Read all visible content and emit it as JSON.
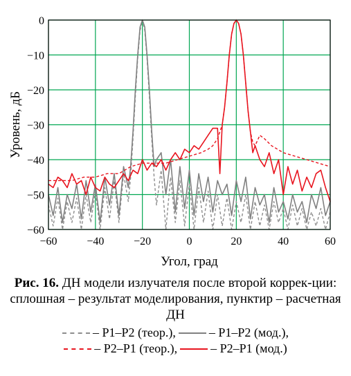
{
  "chart_data": {
    "type": "line",
    "xlabel": "Угол, град",
    "ylabel": "Уровень, дБ",
    "xlim": [
      -60,
      60
    ],
    "ylim": [
      -60,
      0
    ],
    "xticks": [
      -60,
      -40,
      -20,
      0,
      20,
      40,
      60
    ],
    "yticks": [
      0,
      -10,
      -20,
      -30,
      -40,
      -50,
      -60
    ],
    "xtick_labels": [
      "−60",
      "−40",
      "−20",
      "0",
      "20",
      "40",
      "60"
    ],
    "ytick_labels": [
      "0",
      "−10",
      "−20",
      "−30",
      "−40",
      "−50",
      "−60"
    ],
    "grid": true,
    "grid_color": "#00a651",
    "series": [
      {
        "name": "P1–P2 (теор.)",
        "color": "#8c8c8c",
        "dash": true,
        "x": [
          -60,
          -58,
          -56,
          -54,
          -52,
          -50,
          -48,
          -46,
          -44,
          -42,
          -40,
          -38,
          -36,
          -34,
          -32,
          -30,
          -28,
          -26,
          -25,
          -24,
          -23,
          -22,
          -21,
          -20,
          -19,
          -18,
          -17,
          -16,
          -15,
          -14,
          -12,
          -10,
          -8,
          -6,
          -4,
          -2,
          0,
          2,
          4,
          6,
          8,
          10,
          12,
          14,
          16,
          18,
          20,
          22,
          24,
          26,
          28,
          30,
          32,
          34,
          36,
          38,
          40,
          42,
          44,
          46,
          48,
          50,
          52,
          54,
          56,
          58,
          60
        ],
        "y": [
          -53,
          -59,
          -51,
          -60,
          -52,
          -58,
          -51,
          -60,
          -50,
          -58,
          -49,
          -60,
          -48,
          -57,
          -46,
          -58,
          -44,
          -52,
          -45,
          -34,
          -22,
          -11,
          -3,
          0,
          -3,
          -11,
          -22,
          -34,
          -45,
          -53,
          -43,
          -60,
          -45,
          -58,
          -46,
          -59,
          -47,
          -60,
          -48,
          -58,
          -49,
          -60,
          -50,
          -59,
          -51,
          -60,
          -52,
          -58,
          -50,
          -60,
          -52,
          -59,
          -53,
          -60,
          -52,
          -58,
          -54,
          -60,
          -53,
          -59,
          -54,
          -60,
          -55,
          -59,
          -54,
          -60,
          -55
        ]
      },
      {
        "name": "P1–P2 (мод.)",
        "color": "#808080",
        "dash": false,
        "x": [
          -60,
          -58,
          -56,
          -54,
          -52,
          -50,
          -48,
          -46,
          -44,
          -42,
          -40,
          -38,
          -36,
          -34,
          -32,
          -30,
          -28,
          -26,
          -25,
          -24,
          -23,
          -22,
          -21,
          -20,
          -19,
          -18,
          -17,
          -16,
          -15,
          -14,
          -12,
          -10,
          -8,
          -6,
          -4,
          -2,
          0,
          2,
          4,
          6,
          8,
          10,
          12,
          14,
          16,
          18,
          20,
          22,
          24,
          26,
          28,
          30,
          32,
          34,
          36,
          38,
          40,
          42,
          44,
          46,
          48,
          50,
          52,
          54,
          56,
          58,
          60
        ],
        "y": [
          -50,
          -56,
          -48,
          -58,
          -50,
          -54,
          -47,
          -57,
          -46,
          -55,
          -47,
          -58,
          -45,
          -53,
          -44,
          -56,
          -42,
          -48,
          -42,
          -32,
          -20,
          -10,
          -2,
          0,
          -2,
          -10,
          -20,
          -32,
          -42,
          -40,
          -38,
          -50,
          -40,
          -55,
          -42,
          -54,
          -43,
          -56,
          -44,
          -52,
          -45,
          -55,
          -46,
          -50,
          -47,
          -56,
          -46,
          -52,
          -45,
          -57,
          -48,
          -53,
          -50,
          -58,
          -48,
          -55,
          -52,
          -57,
          -50,
          -55,
          -52,
          -58,
          -50,
          -54,
          -48,
          -56,
          -52
        ]
      },
      {
        "name": "P2–P1 (теор.)",
        "color": "#e8141e",
        "dash": true,
        "x": [
          -60,
          -55,
          -50,
          -45,
          -40,
          -35,
          -30,
          -25,
          -20,
          -15,
          -10,
          -5,
          0,
          5,
          8,
          10,
          12,
          13,
          14,
          15,
          16,
          17,
          18,
          19,
          20,
          21,
          22,
          23,
          24,
          25,
          26,
          27,
          28,
          30,
          32,
          35,
          40,
          45,
          50,
          55,
          60
        ],
        "y": [
          -46,
          -46,
          -46,
          -45,
          -45,
          -44,
          -44,
          -42,
          -41,
          -41,
          -41,
          -40,
          -39,
          -38,
          -37,
          -36,
          -34,
          -32,
          -30,
          -25,
          -18,
          -10,
          -4,
          -1,
          0,
          -1,
          -4,
          -10,
          -18,
          -26,
          -32,
          -35,
          -36,
          -33,
          -34,
          -36,
          -38,
          -39,
          -40,
          -41,
          -42
        ]
      },
      {
        "name": "P2–P1 (мод.)",
        "color": "#e8141e",
        "dash": false,
        "x": [
          -60,
          -58,
          -56,
          -54,
          -52,
          -50,
          -48,
          -46,
          -44,
          -42,
          -40,
          -38,
          -36,
          -34,
          -32,
          -30,
          -28,
          -26,
          -24,
          -22,
          -20,
          -18,
          -16,
          -14,
          -12,
          -10,
          -8,
          -6,
          -4,
          -2,
          0,
          2,
          4,
          6,
          8,
          10,
          12,
          13,
          14,
          15,
          16,
          17,
          18,
          19,
          20,
          21,
          22,
          23,
          24,
          25,
          26,
          27,
          28,
          30,
          32,
          34,
          36,
          38,
          40,
          42,
          44,
          46,
          48,
          50,
          52,
          54,
          56,
          58,
          60
        ],
        "y": [
          -47,
          -48,
          -45,
          -46,
          -48,
          -44,
          -47,
          -46,
          -50,
          -45,
          -48,
          -49,
          -45,
          -47,
          -48,
          -46,
          -44,
          -46,
          -43,
          -44,
          -40,
          -43,
          -41,
          -42,
          -40,
          -43,
          -40,
          -38,
          -40,
          -37,
          -38,
          -36,
          -37,
          -35,
          -33,
          -31,
          -31,
          -44,
          -30,
          -25,
          -18,
          -10,
          -4,
          -1,
          0,
          -1,
          -4,
          -10,
          -18,
          -26,
          -32,
          -38,
          -36,
          -40,
          -42,
          -38,
          -44,
          -40,
          -50,
          -42,
          -47,
          -43,
          -49,
          -45,
          -48,
          -44,
          -43,
          -48,
          -52
        ]
      }
    ]
  },
  "caption": {
    "head": "Рис. 16.",
    "text": " ДН модели излучателя после второй коррек-ции: сплошная – результат моделирования, пунктир – расчетная ДН"
  },
  "legend": {
    "items": [
      {
        "label": "– P1–P2 (теор.),",
        "color": "#8c8c8c",
        "style": "dashed"
      },
      {
        "label": "– P1–P2 (мод.),",
        "color": "#808080",
        "style": "solid"
      },
      {
        "label": "– P2–P1 (теор.),",
        "color": "#e8141e",
        "style": "dashed"
      },
      {
        "label": "– P2–P1 (мод.)",
        "color": "#e8141e",
        "style": "solid"
      }
    ]
  }
}
